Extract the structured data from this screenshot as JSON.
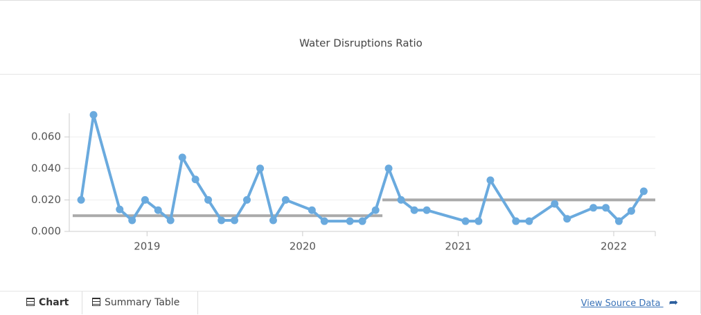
{
  "chart_data": {
    "type": "line",
    "title": "Water Disruptions Ratio",
    "x": [
      2018.576,
      2018.656,
      2018.824,
      2018.904,
      2018.987,
      2019.071,
      2019.151,
      2019.227,
      2019.311,
      2019.393,
      2019.478,
      2019.562,
      2019.642,
      2019.727,
      2019.811,
      2019.891,
      2020.06,
      2020.14,
      2020.304,
      2020.384,
      2020.469,
      2020.553,
      2020.633,
      2020.718,
      2020.798,
      2021.047,
      2021.131,
      2021.207,
      2021.371,
      2021.456,
      2021.62,
      2021.7,
      2021.869,
      2021.949,
      2022.033,
      2022.113,
      2022.193
    ],
    "values": [
      0.02,
      0.074,
      0.014,
      0.007,
      0.02,
      0.0135,
      0.007,
      0.047,
      0.033,
      0.02,
      0.007,
      0.007,
      0.02,
      0.04,
      0.007,
      0.02,
      0.0135,
      0.0065,
      0.0065,
      0.0065,
      0.0135,
      0.04,
      0.02,
      0.0135,
      0.0135,
      0.0065,
      0.0065,
      0.0325,
      0.0065,
      0.0065,
      0.0175,
      0.008,
      0.015,
      0.015,
      0.0065,
      0.013,
      0.0255
    ],
    "color": "#6aaade",
    "reference_lines": [
      {
        "value": 0.01,
        "x": [
          2018.522,
          2020.513
        ]
      },
      {
        "value": 0.02,
        "x": [
          2020.513,
          2022.267
        ]
      }
    ],
    "reference_color": "#aaaaaa",
    "xlim": [
      2018.5,
      2022.267
    ],
    "xticks": [
      2019,
      2020,
      2021,
      2022
    ],
    "ylim": [
      0,
      0.075
    ],
    "yticks": [
      {
        "value": 0,
        "label": "0.000"
      },
      {
        "value": 0.02,
        "label": "0.020"
      },
      {
        "value": 0.04,
        "label": "0.040"
      },
      {
        "value": 0.06,
        "label": "0.060"
      }
    ],
    "grid": true
  },
  "footer": {
    "tabs": [
      "Chart",
      "Summary Table"
    ],
    "link": "View Source Data"
  }
}
